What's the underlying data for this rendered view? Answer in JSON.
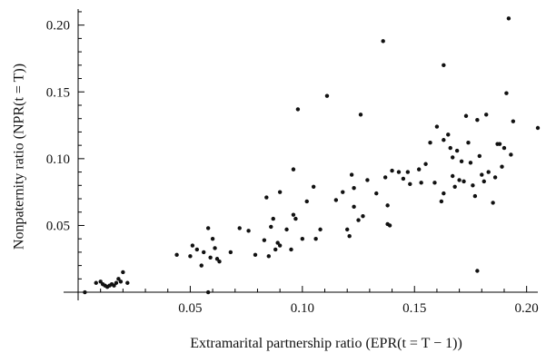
{
  "chart_data": {
    "type": "scatter",
    "xlabel": "Extramarital partnership ratio (EPR(t = T − 1))",
    "ylabel": "Nonpaternity ratio (NPR(t = T))",
    "xlim": [
      0,
      0.205
    ],
    "ylim": [
      -0.002,
      0.212
    ],
    "xticks": [
      0.05,
      0.1,
      0.15,
      0.2
    ],
    "xtick_labels": [
      "0.05",
      "0.10",
      "0.15",
      "0.20"
    ],
    "yticks": [
      0.05,
      0.1,
      0.15,
      0.2
    ],
    "ytick_labels": [
      "0.05",
      "0.10",
      "0.15",
      "0.20"
    ],
    "grid": false,
    "point_color": "#111111",
    "points": [
      [
        0.003,
        0.0
      ],
      [
        0.008,
        0.007
      ],
      [
        0.01,
        0.008
      ],
      [
        0.011,
        0.006
      ],
      [
        0.012,
        0.005
      ],
      [
        0.013,
        0.004
      ],
      [
        0.014,
        0.005
      ],
      [
        0.015,
        0.006
      ],
      [
        0.016,
        0.005
      ],
      [
        0.017,
        0.007
      ],
      [
        0.018,
        0.01
      ],
      [
        0.019,
        0.008
      ],
      [
        0.02,
        0.015
      ],
      [
        0.022,
        0.007
      ],
      [
        0.044,
        0.028
      ],
      [
        0.05,
        0.027
      ],
      [
        0.051,
        0.035
      ],
      [
        0.053,
        0.032
      ],
      [
        0.055,
        0.02
      ],
      [
        0.056,
        0.03
      ],
      [
        0.058,
        0.048
      ],
      [
        0.059,
        0.026
      ],
      [
        0.06,
        0.04
      ],
      [
        0.061,
        0.033
      ],
      [
        0.062,
        0.025
      ],
      [
        0.058,
        0.0
      ],
      [
        0.063,
        0.023
      ],
      [
        0.068,
        0.03
      ],
      [
        0.072,
        0.048
      ],
      [
        0.076,
        0.046
      ],
      [
        0.079,
        0.028
      ],
      [
        0.083,
        0.039
      ],
      [
        0.084,
        0.071
      ],
      [
        0.085,
        0.027
      ],
      [
        0.086,
        0.049
      ],
      [
        0.087,
        0.055
      ],
      [
        0.088,
        0.032
      ],
      [
        0.089,
        0.037
      ],
      [
        0.09,
        0.035
      ],
      [
        0.09,
        0.075
      ],
      [
        0.093,
        0.047
      ],
      [
        0.095,
        0.032
      ],
      [
        0.096,
        0.058
      ],
      [
        0.097,
        0.055
      ],
      [
        0.096,
        0.092
      ],
      [
        0.098,
        0.137
      ],
      [
        0.1,
        0.04
      ],
      [
        0.102,
        0.068
      ],
      [
        0.105,
        0.079
      ],
      [
        0.106,
        0.04
      ],
      [
        0.108,
        0.047
      ],
      [
        0.111,
        0.147
      ],
      [
        0.115,
        0.069
      ],
      [
        0.118,
        0.075
      ],
      [
        0.12,
        0.047
      ],
      [
        0.121,
        0.042
      ],
      [
        0.122,
        0.088
      ],
      [
        0.123,
        0.064
      ],
      [
        0.123,
        0.078
      ],
      [
        0.125,
        0.054
      ],
      [
        0.126,
        0.133
      ],
      [
        0.127,
        0.057
      ],
      [
        0.129,
        0.084
      ],
      [
        0.133,
        0.074
      ],
      [
        0.136,
        0.188
      ],
      [
        0.137,
        0.086
      ],
      [
        0.138,
        0.065
      ],
      [
        0.138,
        0.051
      ],
      [
        0.139,
        0.05
      ],
      [
        0.14,
        0.091
      ],
      [
        0.143,
        0.09
      ],
      [
        0.145,
        0.085
      ],
      [
        0.147,
        0.09
      ],
      [
        0.148,
        0.081
      ],
      [
        0.152,
        0.092
      ],
      [
        0.153,
        0.082
      ],
      [
        0.155,
        0.096
      ],
      [
        0.157,
        0.112
      ],
      [
        0.159,
        0.082
      ],
      [
        0.16,
        0.124
      ],
      [
        0.162,
        0.068
      ],
      [
        0.163,
        0.074
      ],
      [
        0.163,
        0.114
      ],
      [
        0.163,
        0.17
      ],
      [
        0.165,
        0.118
      ],
      [
        0.166,
        0.108
      ],
      [
        0.167,
        0.087
      ],
      [
        0.167,
        0.101
      ],
      [
        0.168,
        0.079
      ],
      [
        0.169,
        0.106
      ],
      [
        0.17,
        0.084
      ],
      [
        0.171,
        0.098
      ],
      [
        0.172,
        0.083
      ],
      [
        0.173,
        0.132
      ],
      [
        0.174,
        0.112
      ],
      [
        0.175,
        0.097
      ],
      [
        0.176,
        0.08
      ],
      [
        0.177,
        0.072
      ],
      [
        0.178,
        0.129
      ],
      [
        0.178,
        0.016
      ],
      [
        0.179,
        0.102
      ],
      [
        0.18,
        0.088
      ],
      [
        0.181,
        0.083
      ],
      [
        0.182,
        0.133
      ],
      [
        0.183,
        0.09
      ],
      [
        0.185,
        0.067
      ],
      [
        0.186,
        0.086
      ],
      [
        0.187,
        0.111
      ],
      [
        0.188,
        0.111
      ],
      [
        0.189,
        0.094
      ],
      [
        0.19,
        0.108
      ],
      [
        0.191,
        0.149
      ],
      [
        0.192,
        0.205
      ],
      [
        0.193,
        0.103
      ],
      [
        0.194,
        0.128
      ],
      [
        0.205,
        0.123
      ]
    ]
  }
}
